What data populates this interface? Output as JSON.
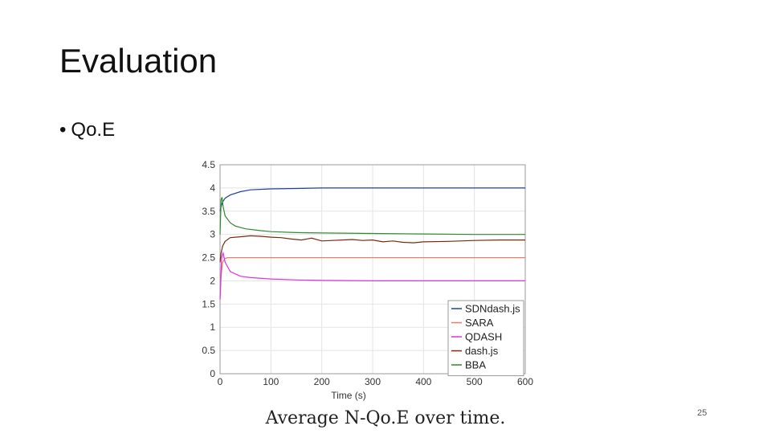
{
  "slide": {
    "title": "Evaluation",
    "bullet": "Qo.E",
    "bullet_marker": "•",
    "caption": "Average N-Qo.E over time.",
    "slide_number": "25"
  },
  "chart_data": {
    "type": "line",
    "title": "",
    "xlabel": "Time (s)",
    "ylabel": "",
    "xlim": [
      0,
      600
    ],
    "ylim": [
      0,
      4.5
    ],
    "x_ticks": [
      0,
      100,
      200,
      300,
      400,
      500,
      600
    ],
    "x_tick_labels": [
      "0",
      "100",
      "200",
      "300",
      "400",
      "500",
      "600"
    ],
    "y_ticks": [
      0,
      0.5,
      1,
      1.5,
      2,
      2.5,
      3,
      3.5,
      4,
      4.5
    ],
    "y_tick_labels": [
      "0",
      "0.5",
      "1",
      "1.5",
      "2",
      "2.5",
      "3",
      "3.5",
      "4",
      "4.5"
    ],
    "grid": true,
    "legend_position": "bottom-right",
    "series": [
      {
        "name": "SDNdash.js",
        "color": "#1f3fa8",
        "x": [
          0,
          2,
          5,
          10,
          20,
          40,
          60,
          100,
          150,
          200,
          300,
          400,
          500,
          600
        ],
        "y": [
          3.5,
          3.6,
          3.7,
          3.78,
          3.85,
          3.92,
          3.96,
          3.98,
          3.99,
          4.0,
          4.0,
          4.0,
          4.0,
          4.0
        ]
      },
      {
        "name": "SARA",
        "color": "#e0826a",
        "x": [
          0,
          2,
          5,
          10,
          15,
          20,
          40,
          100,
          200,
          300,
          400,
          500,
          600
        ],
        "y": [
          1.6,
          2.1,
          2.4,
          2.48,
          2.5,
          2.5,
          2.5,
          2.5,
          2.5,
          2.5,
          2.5,
          2.5,
          2.5
        ]
      },
      {
        "name": "QDASH",
        "color": "#e030e0",
        "x": [
          0,
          3,
          6,
          10,
          20,
          40,
          60,
          100,
          150,
          200,
          300,
          400,
          500,
          600
        ],
        "y": [
          1.6,
          2.5,
          2.6,
          2.4,
          2.2,
          2.1,
          2.07,
          2.04,
          2.02,
          2.01,
          2.0,
          2.0,
          2.0,
          2.0
        ]
      },
      {
        "name": "dash.js",
        "color": "#7a2a10",
        "x": [
          0,
          2,
          5,
          10,
          20,
          40,
          60,
          80,
          100,
          120,
          140,
          160,
          180,
          200,
          220,
          240,
          260,
          280,
          300,
          320,
          340,
          360,
          380,
          400,
          450,
          500,
          550,
          600
        ],
        "y": [
          2.4,
          2.6,
          2.75,
          2.85,
          2.93,
          2.95,
          2.97,
          2.96,
          2.94,
          2.93,
          2.9,
          2.88,
          2.92,
          2.86,
          2.87,
          2.88,
          2.89,
          2.87,
          2.88,
          2.84,
          2.86,
          2.83,
          2.82,
          2.84,
          2.85,
          2.87,
          2.88,
          2.88
        ]
      },
      {
        "name": "BBA",
        "color": "#2e8b2e",
        "x": [
          0,
          2,
          4,
          6,
          10,
          20,
          30,
          50,
          80,
          100,
          150,
          200,
          300,
          400,
          500,
          600
        ],
        "y": [
          3.0,
          3.75,
          3.8,
          3.6,
          3.4,
          3.25,
          3.18,
          3.12,
          3.08,
          3.06,
          3.04,
          3.03,
          3.02,
          3.01,
          3.0,
          3.0
        ]
      }
    ]
  }
}
